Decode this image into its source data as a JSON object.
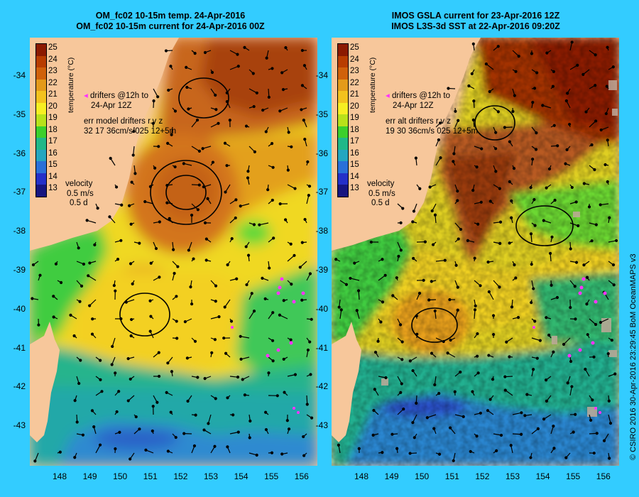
{
  "left_panel": {
    "title_line1": "OM_fc02 10-15m temp. 24-Apr-2016",
    "title_line2": "OM_fc02 10-15m current for 24-Apr-2016 00Z",
    "drifters_line1": "drifters @12h to",
    "drifters_line2": "24-Apr 12Z",
    "err_line1": "err model drifters r.v z",
    "err_line2": "32 17 36cm/s 025 12+5m",
    "velocity_label": "velocity",
    "velocity_scale": "0.5 m/s",
    "velocity_days": "0.5 d"
  },
  "right_panel": {
    "title_line1": "IMOS GSLA current for 23-Apr-2016 12Z",
    "title_line2": "IMOS L3S-3d SST at 22-Apr-2016 09:20Z",
    "drifters_line1": "drifters @12h to",
    "drifters_line2": "24-Apr 12Z",
    "err_line1": "err alt drifters r.v z",
    "err_line2": "19 30 36cm/s 025 12+5m",
    "velocity_label": "velocity",
    "velocity_scale": "0.5 m/s",
    "velocity_days": "0.5 d"
  },
  "colorbar": {
    "title": "temperature (°C)",
    "labels": [
      "25",
      "24",
      "23",
      "22",
      "21",
      "20",
      "19",
      "18",
      "17",
      "16",
      "15",
      "14",
      "13"
    ],
    "colors": [
      "#8b1a00",
      "#b83d00",
      "#d0610a",
      "#e39a1a",
      "#f3c21e",
      "#f7ee22",
      "#b8e11a",
      "#3ccf2c",
      "#20b888",
      "#24a6c0",
      "#2a70d8",
      "#2430c8",
      "#161680"
    ]
  },
  "axes": {
    "lat_ticks": [
      "-34",
      "-35",
      "-36",
      "-37",
      "-38",
      "-39",
      "-40",
      "-41",
      "-42",
      "-43"
    ],
    "lon_ticks": [
      "148",
      "149",
      "150",
      "151",
      "152",
      "153",
      "154",
      "155",
      "156"
    ]
  },
  "copyright": "© CSIRO 2016   30-Apr-2016 23:29:45 BoM OceanMAPS v3",
  "colors": {
    "background": "#33ccff",
    "land": "#f7c79b",
    "drifter": "#ff33ff"
  }
}
